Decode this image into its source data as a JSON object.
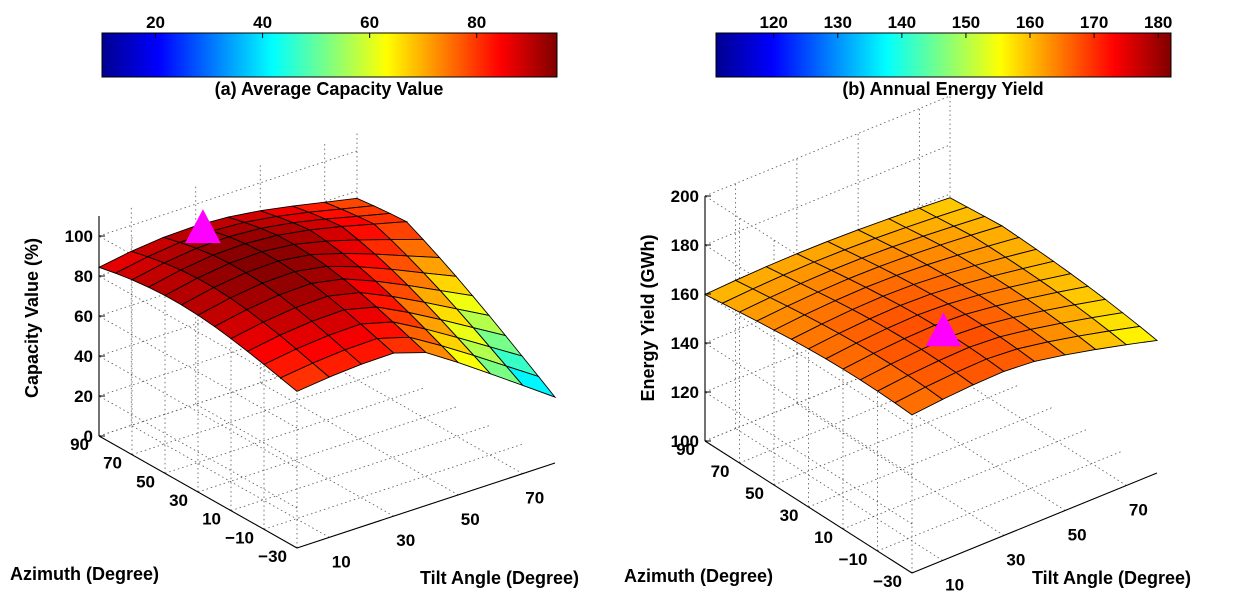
{
  "chart_data": [
    {
      "type": "surface",
      "title": "(a) Average Capacity Value",
      "colorbar": {
        "ticks": [
          "20",
          "40",
          "60",
          "80"
        ],
        "range": [
          10,
          95
        ],
        "colormap": "jet"
      },
      "xlabel": "Tilt Angle (Degree)",
      "ylabel": "Azimuth (Degree)",
      "zlabel": "Capacity Value (%)",
      "x_ticks": [
        "10",
        "30",
        "50",
        "70"
      ],
      "y_ticks": [
        "90",
        "70",
        "50",
        "30",
        "10",
        "−10",
        "−30"
      ],
      "z_ticks": [
        "0",
        "20",
        "40",
        "60",
        "80",
        "100"
      ],
      "xlim": [
        0,
        80
      ],
      "ylim": [
        -30,
        90
      ],
      "zlim": [
        0,
        110
      ],
      "tilt": [
        0,
        10,
        20,
        30,
        40,
        50,
        60,
        70,
        80
      ],
      "azimuth": [
        -30,
        -20,
        -10,
        0,
        10,
        20,
        30,
        40,
        50,
        60,
        70,
        80,
        90
      ],
      "model": {
        "tilt_peak": 28,
        "azimuth_peak": 45,
        "peak_value": 95,
        "flat_value": 66,
        "tilt_width": 58,
        "azimuth_width": 95,
        "decay_power": 2
      },
      "marker": {
        "tilt": 22,
        "azimuth": 70,
        "value": 102,
        "color": "#ff00ff",
        "shape": "triangle"
      }
    },
    {
      "type": "surface",
      "title": "(b) Annual Energy Yield",
      "colorbar": {
        "ticks": [
          "120",
          "130",
          "140",
          "150",
          "160",
          "170",
          "180"
        ],
        "range": [
          111,
          182
        ],
        "colormap": "jet"
      },
      "xlabel": "Tilt Angle (Degree)",
      "ylabel": "Azimuth (Degree)",
      "zlabel": "Energy Yield (GWh)",
      "x_ticks": [
        "10",
        "30",
        "50",
        "70"
      ],
      "y_ticks": [
        "90",
        "70",
        "50",
        "30",
        "10",
        "−10",
        "−30"
      ],
      "z_ticks": [
        "100",
        "120",
        "140",
        "160",
        "180",
        "200"
      ],
      "xlim": [
        0,
        80
      ],
      "ylim": [
        -30,
        90
      ],
      "zlim": [
        100,
        200
      ],
      "tilt": [
        0,
        10,
        20,
        30,
        40,
        50,
        60,
        70,
        80
      ],
      "azimuth": [
        -30,
        -20,
        -10,
        0,
        10,
        20,
        30,
        40,
        50,
        60,
        70,
        80,
        90
      ],
      "model": {
        "tilt_peak": 32,
        "azimuth_peak": 0,
        "peak_value": 168,
        "flat_value": 154,
        "tilt_width": 70,
        "azimuth_width": 110,
        "decay_power": 2
      },
      "marker": {
        "tilt": 30,
        "azimuth": 5,
        "value": 168,
        "color": "#ff00ff",
        "shape": "triangle"
      }
    }
  ]
}
